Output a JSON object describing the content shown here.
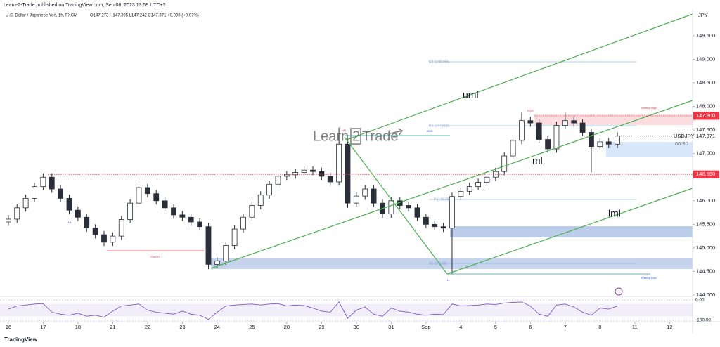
{
  "chart_data": {
    "type": "candlestick",
    "header": {
      "published": "Learn-2-Trade published on TradingView.com, Sep 08, 2023 13:59 UTC+3",
      "symbol": "U.S. Dollar / Japanese Yen, 1h, FXCM",
      "ohlc": "O147.273 H147.395 L147.242 C147.371 +0.098 (+0.07%)"
    },
    "currency": "JPY",
    "symbol": "USDJPY",
    "last_price": {
      "value": 147.371,
      "label": "147.371"
    },
    "countdown": "00:30",
    "levels": [
      {
        "value": 147.8,
        "label": "147.800",
        "color": "#f23645"
      },
      {
        "value": 146.56,
        "label": "146.560",
        "color": "#f23645"
      }
    ],
    "watermark": [
      "Learn",
      "2",
      "Trade"
    ],
    "brand": "TradingView",
    "up_color": "#ffffff",
    "down_color": "#2a2e39",
    "xlim": [
      -0.24,
      19.66
    ],
    "ylim": [
      144.0,
      150.05
    ],
    "xticks": [
      {
        "value": 0,
        "label": "16"
      },
      {
        "value": 1,
        "label": "17"
      },
      {
        "value": 2,
        "label": "18"
      },
      {
        "value": 3,
        "label": "21"
      },
      {
        "value": 4,
        "label": "22"
      },
      {
        "value": 5,
        "label": "23"
      },
      {
        "value": 6,
        "label": "24"
      },
      {
        "value": 7,
        "label": "25"
      },
      {
        "value": 8,
        "label": "28"
      },
      {
        "value": 9,
        "label": "29"
      },
      {
        "value": 10,
        "label": "30"
      },
      {
        "value": 11,
        "label": "31"
      },
      {
        "value": 12,
        "label": "Sep"
      },
      {
        "value": 13,
        "label": "4"
      },
      {
        "value": 14,
        "label": "5"
      },
      {
        "value": 15,
        "label": "6"
      },
      {
        "value": 16,
        "label": "7"
      },
      {
        "value": 17,
        "label": "8"
      },
      {
        "value": 18,
        "label": "11"
      },
      {
        "value": 19,
        "label": "12"
      }
    ],
    "yticks": [
      {
        "value": 149.5,
        "label": "149.500"
      },
      {
        "value": 149.0,
        "label": "149.000"
      },
      {
        "value": 148.5,
        "label": "148.500"
      },
      {
        "value": 148.0,
        "label": "148.000"
      },
      {
        "value": 147.5,
        "label": "147.500"
      },
      {
        "value": 147.0,
        "label": "147.000"
      },
      {
        "value": 146.0,
        "label": "146.000"
      },
      {
        "value": 145.5,
        "label": "145.500"
      },
      {
        "value": 145.0,
        "label": "145.000"
      },
      {
        "value": 144.5,
        "label": "144.500"
      },
      {
        "value": 144.0,
        "label": "144.000"
      }
    ],
    "x": [
      0,
      0.25,
      0.5,
      0.75,
      1,
      1.25,
      1.5,
      1.75,
      2,
      2.25,
      2.5,
      2.75,
      3,
      3.25,
      3.5,
      3.75,
      4,
      4.25,
      4.5,
      4.75,
      5,
      5.25,
      5.5,
      5.75,
      6,
      6.25,
      6.5,
      6.75,
      7,
      7.25,
      7.5,
      7.75,
      8,
      8.25,
      8.5,
      8.75,
      9,
      9.25,
      9.5,
      9.75,
      10,
      10.25,
      10.5,
      10.75,
      11,
      11.25,
      11.5,
      11.75,
      12,
      12.25,
      12.5,
      12.75,
      13,
      13.25,
      13.5,
      13.75,
      14,
      14.25,
      14.5,
      14.75,
      15,
      15.25,
      15.5,
      15.75,
      16,
      16.25,
      16.5,
      16.75,
      17,
      17.25,
      17.5
    ],
    "ohlc": [
      [
        145.55,
        145.7,
        145.47,
        145.61
      ],
      [
        145.61,
        145.93,
        145.53,
        145.85
      ],
      [
        145.85,
        146.13,
        145.77,
        146.05
      ],
      [
        146.05,
        146.38,
        145.97,
        146.3
      ],
      [
        146.3,
        146.58,
        146.22,
        146.5
      ],
      [
        146.5,
        146.58,
        146.17,
        146.25
      ],
      [
        146.25,
        146.33,
        145.97,
        146.05
      ],
      [
        146.05,
        146.13,
        145.72,
        145.8
      ],
      [
        145.8,
        145.88,
        145.57,
        145.65
      ],
      [
        145.65,
        145.73,
        145.34,
        145.42
      ],
      [
        145.42,
        145.5,
        145.2,
        145.28
      ],
      [
        145.28,
        145.36,
        145.04,
        145.12
      ],
      [
        145.12,
        145.33,
        145.04,
        145.25
      ],
      [
        145.25,
        145.68,
        145.17,
        145.6
      ],
      [
        145.6,
        146.03,
        145.52,
        145.95
      ],
      [
        145.95,
        146.36,
        145.87,
        146.28
      ],
      [
        146.28,
        146.36,
        146.07,
        146.15
      ],
      [
        146.15,
        146.23,
        145.92,
        146.0
      ],
      [
        146.0,
        146.08,
        145.77,
        145.85
      ],
      [
        145.85,
        145.93,
        145.62,
        145.7
      ],
      [
        145.7,
        145.78,
        145.57,
        145.65
      ],
      [
        145.65,
        145.73,
        145.47,
        145.55
      ],
      [
        145.55,
        145.63,
        145.37,
        145.45
      ],
      [
        145.45,
        145.53,
        144.55,
        144.65
      ],
      [
        144.65,
        144.8,
        144.57,
        144.72
      ],
      [
        144.72,
        145.13,
        144.64,
        145.05
      ],
      [
        145.05,
        145.48,
        144.97,
        145.4
      ],
      [
        145.4,
        145.73,
        145.32,
        145.65
      ],
      [
        145.65,
        145.98,
        145.57,
        145.9
      ],
      [
        145.9,
        146.2,
        145.82,
        146.12
      ],
      [
        146.12,
        146.43,
        146.04,
        146.35
      ],
      [
        146.35,
        146.6,
        146.27,
        146.52
      ],
      [
        146.52,
        146.63,
        146.44,
        146.55
      ],
      [
        146.55,
        146.68,
        146.47,
        146.6
      ],
      [
        146.6,
        146.73,
        146.52,
        146.65
      ],
      [
        146.65,
        146.73,
        146.54,
        146.62
      ],
      [
        146.62,
        146.7,
        146.44,
        146.52
      ],
      [
        146.52,
        146.6,
        146.32,
        146.4
      ],
      [
        146.4,
        147.55,
        146.32,
        147.2
      ],
      [
        147.2,
        147.28,
        145.85,
        145.95
      ],
      [
        145.95,
        146.18,
        145.87,
        146.1
      ],
      [
        146.1,
        146.33,
        146.02,
        146.25
      ],
      [
        146.25,
        146.33,
        145.87,
        145.95
      ],
      [
        145.95,
        146.03,
        145.64,
        145.72
      ],
      [
        145.72,
        146.08,
        145.64,
        146.0
      ],
      [
        146.0,
        146.08,
        145.82,
        145.9
      ],
      [
        145.9,
        145.98,
        145.77,
        145.85
      ],
      [
        145.85,
        145.93,
        145.57,
        145.65
      ],
      [
        145.65,
        145.73,
        145.42,
        145.5
      ],
      [
        145.5,
        145.58,
        145.37,
        145.45
      ],
      [
        145.45,
        145.53,
        145.34,
        145.42
      ],
      [
        145.42,
        146.17,
        144.45,
        146.09
      ],
      [
        146.09,
        146.28,
        146.01,
        146.2
      ],
      [
        146.2,
        146.38,
        146.12,
        146.3
      ],
      [
        146.3,
        146.47,
        146.22,
        146.39
      ],
      [
        146.39,
        146.58,
        146.31,
        146.5
      ],
      [
        146.5,
        146.7,
        146.42,
        146.62
      ],
      [
        146.62,
        147.03,
        146.54,
        146.95
      ],
      [
        146.95,
        147.36,
        146.87,
        147.28
      ],
      [
        147.28,
        147.87,
        147.2,
        147.7
      ],
      [
        147.7,
        147.78,
        147.57,
        147.65
      ],
      [
        147.65,
        147.73,
        147.22,
        147.3
      ],
      [
        147.3,
        147.38,
        147.02,
        147.1
      ],
      [
        147.1,
        147.68,
        147.02,
        147.6
      ],
      [
        147.6,
        147.87,
        147.52,
        147.7
      ],
      [
        147.7,
        147.78,
        147.57,
        147.65
      ],
      [
        147.65,
        147.73,
        147.37,
        147.45
      ],
      [
        147.45,
        147.53,
        146.6,
        147.15
      ],
      [
        147.15,
        147.33,
        147.07,
        147.25
      ],
      [
        147.25,
        147.33,
        147.12,
        147.2
      ],
      [
        147.2,
        147.45,
        147.12,
        147.371
      ]
    ],
    "annotations": [
      "uml",
      "ml",
      "lml",
      "HH",
      "LL",
      "HL",
      "ChoCH",
      "BOS",
      "R2 (148.956)",
      "R1 (147.602)",
      "P (146.05)",
      "S1 (144.66)",
      "EQH",
      "Weekly High",
      "Weekly Low"
    ],
    "oscillator": {
      "color": "#7e57c2",
      "ylim": [
        -100,
        0
      ],
      "yticks": [
        {
          "value": 0,
          "label": "0.00"
        },
        {
          "value": -100,
          "label": "-100.00"
        }
      ],
      "values": [
        -45,
        -30,
        -25,
        -20,
        -18,
        -60,
        -70,
        -75,
        -65,
        -80,
        -75,
        -85,
        -55,
        -30,
        -25,
        -20,
        -50,
        -60,
        -65,
        -70,
        -55,
        -70,
        -75,
        -95,
        -60,
        -30,
        -25,
        -22,
        -20,
        -25,
        -20,
        -18,
        -30,
        -25,
        -28,
        -40,
        -55,
        -60,
        -10,
        -90,
        -50,
        -35,
        -70,
        -80,
        -40,
        -55,
        -60,
        -70,
        -75,
        -70,
        -72,
        -20,
        -30,
        -28,
        -25,
        -20,
        -22,
        -15,
        -12,
        -10,
        -30,
        -70,
        -80,
        -25,
        -20,
        -35,
        -60,
        -75,
        -40,
        -45,
        -30
      ]
    }
  }
}
